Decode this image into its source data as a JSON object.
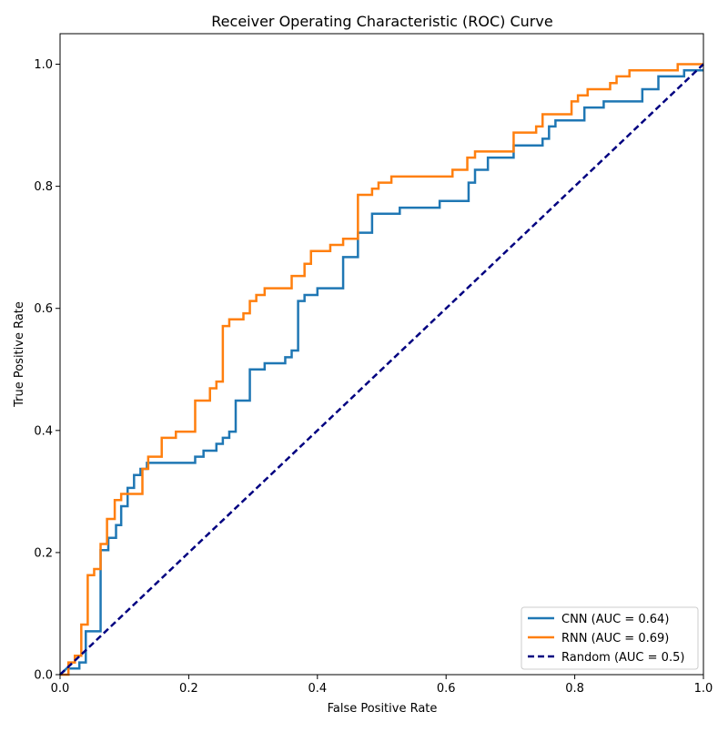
{
  "chart_data": {
    "type": "line",
    "title": "Receiver Operating Characteristic (ROC) Curve",
    "xlabel": "False Positive Rate",
    "ylabel": "True Positive Rate",
    "xlim": [
      0.0,
      1.0
    ],
    "ylim": [
      0.0,
      1.05
    ],
    "xticks": [
      "0.0",
      "0.2",
      "0.4",
      "0.6",
      "0.8",
      "1.0"
    ],
    "yticks": [
      "0.0",
      "0.2",
      "0.4",
      "0.6",
      "0.8",
      "1.0"
    ],
    "grid": false,
    "legend_position": "lower-right",
    "series": [
      {
        "name": "CNN (AUC = 0.64)",
        "color": "#1f77b4",
        "style": "solid",
        "x": [
          0,
          0.01,
          0.03,
          0.03,
          0.04,
          0.04,
          0.063,
          0.063,
          0.075,
          0.075,
          0.087,
          0.087,
          0.095,
          0.095,
          0.105,
          0.105,
          0.115,
          0.115,
          0.125,
          0.125,
          0.135,
          0.135,
          0.21,
          0.21,
          0.223,
          0.223,
          0.243,
          0.243,
          0.253,
          0.253,
          0.263,
          0.263,
          0.273,
          0.273,
          0.295,
          0.295,
          0.318,
          0.318,
          0.35,
          0.35,
          0.36,
          0.36,
          0.37,
          0.37,
          0.38,
          0.38,
          0.4,
          0.4,
          0.44,
          0.44,
          0.463,
          0.463,
          0.485,
          0.485,
          0.528,
          0.528,
          0.59,
          0.59,
          0.635,
          0.635,
          0.645,
          0.645,
          0.665,
          0.665,
          0.705,
          0.705,
          0.75,
          0.75,
          0.76,
          0.76,
          0.77,
          0.77,
          0.815,
          0.815,
          0.845,
          0.845,
          0.905,
          0.905,
          0.93,
          0.93,
          0.97,
          0.97,
          1.0
        ],
        "y": [
          0,
          0.01,
          0.01,
          0.02,
          0.02,
          0.071,
          0.071,
          0.204,
          0.204,
          0.224,
          0.224,
          0.245,
          0.245,
          0.276,
          0.276,
          0.306,
          0.306,
          0.327,
          0.327,
          0.337,
          0.337,
          0.347,
          0.347,
          0.357,
          0.357,
          0.367,
          0.367,
          0.378,
          0.378,
          0.388,
          0.388,
          0.398,
          0.398,
          0.449,
          0.449,
          0.5,
          0.5,
          0.51,
          0.51,
          0.52,
          0.52,
          0.531,
          0.531,
          0.612,
          0.612,
          0.622,
          0.622,
          0.633,
          0.633,
          0.684,
          0.684,
          0.724,
          0.724,
          0.755,
          0.755,
          0.765,
          0.765,
          0.776,
          0.776,
          0.806,
          0.806,
          0.827,
          0.827,
          0.847,
          0.847,
          0.867,
          0.867,
          0.878,
          0.878,
          0.898,
          0.898,
          0.908,
          0.908,
          0.929,
          0.929,
          0.939,
          0.939,
          0.959,
          0.959,
          0.98,
          0.98,
          0.99,
          0.99
        ]
      },
      {
        "name": "RNN (AUC = 0.69)",
        "color": "#ff7f0e",
        "style": "solid",
        "x": [
          0,
          0.013,
          0.013,
          0.023,
          0.023,
          0.033,
          0.033,
          0.043,
          0.043,
          0.053,
          0.053,
          0.063,
          0.063,
          0.073,
          0.073,
          0.085,
          0.085,
          0.095,
          0.095,
          0.128,
          0.128,
          0.137,
          0.137,
          0.158,
          0.158,
          0.18,
          0.18,
          0.21,
          0.21,
          0.233,
          0.233,
          0.243,
          0.243,
          0.253,
          0.253,
          0.263,
          0.263,
          0.285,
          0.285,
          0.295,
          0.295,
          0.305,
          0.305,
          0.318,
          0.318,
          0.36,
          0.36,
          0.38,
          0.38,
          0.39,
          0.39,
          0.42,
          0.42,
          0.44,
          0.44,
          0.463,
          0.463,
          0.485,
          0.485,
          0.495,
          0.495,
          0.515,
          0.515,
          0.61,
          0.61,
          0.633,
          0.633,
          0.645,
          0.645,
          0.705,
          0.705,
          0.74,
          0.74,
          0.75,
          0.75,
          0.795,
          0.795,
          0.805,
          0.805,
          0.82,
          0.82,
          0.855,
          0.855,
          0.865,
          0.865,
          0.885,
          0.885,
          0.96,
          0.96,
          1.0
        ],
        "y": [
          0,
          0,
          0.02,
          0.02,
          0.031,
          0.031,
          0.082,
          0.082,
          0.163,
          0.163,
          0.173,
          0.173,
          0.214,
          0.214,
          0.255,
          0.255,
          0.286,
          0.286,
          0.296,
          0.296,
          0.337,
          0.337,
          0.357,
          0.357,
          0.388,
          0.388,
          0.398,
          0.398,
          0.449,
          0.449,
          0.469,
          0.469,
          0.48,
          0.48,
          0.571,
          0.571,
          0.582,
          0.582,
          0.592,
          0.592,
          0.612,
          0.612,
          0.622,
          0.622,
          0.633,
          0.633,
          0.653,
          0.653,
          0.673,
          0.673,
          0.694,
          0.694,
          0.704,
          0.704,
          0.714,
          0.714,
          0.786,
          0.786,
          0.796,
          0.796,
          0.806,
          0.806,
          0.816,
          0.816,
          0.827,
          0.827,
          0.847,
          0.847,
          0.857,
          0.857,
          0.888,
          0.888,
          0.898,
          0.898,
          0.918,
          0.918,
          0.939,
          0.939,
          0.949,
          0.949,
          0.959,
          0.959,
          0.969,
          0.969,
          0.98,
          0.98,
          0.99,
          0.99,
          1.0,
          1.0
        ]
      },
      {
        "name": "Random (AUC = 0.5)",
        "color": "#000080",
        "style": "dashed",
        "x": [
          0,
          1
        ],
        "y": [
          0,
          1
        ]
      }
    ]
  }
}
